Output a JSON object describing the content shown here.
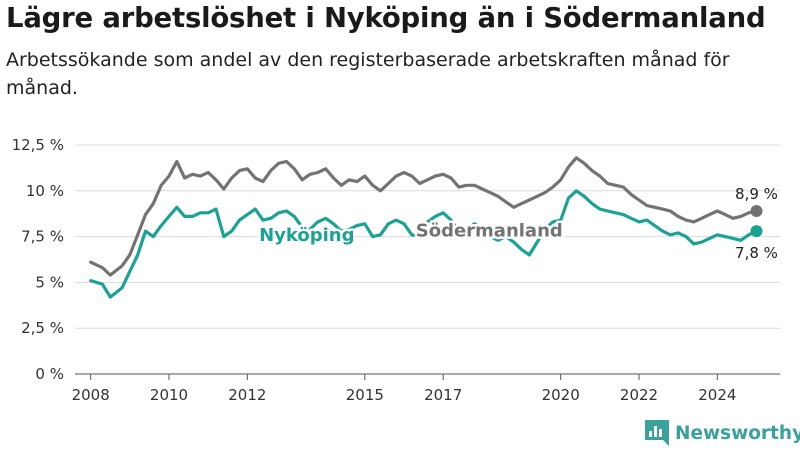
{
  "header": {
    "title": "Lägre arbetslöshet i Nyköping än i Södermanland",
    "subtitle": "Arbetssökande som andel av den registerbaserade arbetskraften månad för månad."
  },
  "brand": {
    "name": "Newsworthy",
    "color": "#3aa19b"
  },
  "chart_data": {
    "type": "line",
    "title": "Lägre arbetslöshet i Nyköping än i Södermanland",
    "subtitle": "Arbetssökande som andel av den registerbaserade arbetskraften månad för månad.",
    "xlabel": "",
    "ylabel": "",
    "ylim": [
      0,
      12.5
    ],
    "xlim": [
      2007.6,
      2025.6
    ],
    "grid": true,
    "y_ticks": [
      0,
      2.5,
      5,
      7.5,
      10,
      12.5
    ],
    "y_tick_labels": [
      "0 %",
      "2,5 %",
      "5 %",
      "7,5 %",
      "10 %",
      "12,5 %"
    ],
    "x_ticks": [
      2008,
      2010,
      2012,
      2015,
      2017,
      2020,
      2022,
      2024
    ],
    "x_tick_labels": [
      "2008",
      "2010",
      "2012",
      "2015",
      "2017",
      "2020",
      "2022",
      "2024"
    ],
    "series": [
      {
        "name": "Södermanland",
        "color": "#737373",
        "end_label": "8,9 %",
        "x": [
          2008.0,
          2008.3,
          2008.5,
          2008.8,
          2009.0,
          2009.2,
          2009.4,
          2009.6,
          2009.8,
          2010.0,
          2010.2,
          2010.4,
          2010.6,
          2010.8,
          2011.0,
          2011.2,
          2011.4,
          2011.6,
          2011.8,
          2012.0,
          2012.2,
          2012.4,
          2012.6,
          2012.8,
          2013.0,
          2013.2,
          2013.4,
          2013.6,
          2013.8,
          2014.0,
          2014.2,
          2014.4,
          2014.6,
          2014.8,
          2015.0,
          2015.2,
          2015.4,
          2015.6,
          2015.8,
          2016.0,
          2016.2,
          2016.4,
          2016.6,
          2016.8,
          2017.0,
          2017.2,
          2017.4,
          2017.6,
          2017.8,
          2018.0,
          2018.2,
          2018.4,
          2018.6,
          2018.8,
          2019.0,
          2019.2,
          2019.4,
          2019.6,
          2019.8,
          2020.0,
          2020.2,
          2020.4,
          2020.6,
          2020.8,
          2021.0,
          2021.2,
          2021.4,
          2021.6,
          2021.8,
          2022.0,
          2022.2,
          2022.4,
          2022.6,
          2022.8,
          2023.0,
          2023.2,
          2023.4,
          2023.6,
          2023.8,
          2024.0,
          2024.2,
          2024.4,
          2024.6,
          2024.8,
          2025.0
        ],
        "values": [
          6.1,
          5.8,
          5.4,
          5.9,
          6.5,
          7.6,
          8.7,
          9.3,
          10.3,
          10.8,
          11.6,
          10.7,
          10.9,
          10.8,
          11.0,
          10.6,
          10.1,
          10.7,
          11.1,
          11.2,
          10.7,
          10.5,
          11.1,
          11.5,
          11.6,
          11.2,
          10.6,
          10.9,
          11.0,
          11.2,
          10.7,
          10.3,
          10.6,
          10.5,
          10.8,
          10.3,
          10.0,
          10.4,
          10.8,
          11.0,
          10.8,
          10.4,
          10.6,
          10.8,
          10.9,
          10.7,
          10.2,
          10.3,
          10.3,
          10.1,
          9.9,
          9.7,
          9.4,
          9.1,
          9.3,
          9.5,
          9.7,
          9.9,
          10.2,
          10.6,
          11.3,
          11.8,
          11.5,
          11.1,
          10.8,
          10.4,
          10.3,
          10.2,
          9.8,
          9.5,
          9.2,
          9.1,
          9.0,
          8.9,
          8.6,
          8.4,
          8.3,
          8.5,
          8.7,
          8.9,
          8.7,
          8.5,
          8.6,
          8.8,
          8.9
        ]
      },
      {
        "name": "Nyköping",
        "color": "#1aa394",
        "end_label": "7,8 %",
        "x": [
          2008.0,
          2008.3,
          2008.5,
          2008.8,
          2009.0,
          2009.2,
          2009.4,
          2009.6,
          2009.8,
          2010.0,
          2010.2,
          2010.4,
          2010.6,
          2010.8,
          2011.0,
          2011.2,
          2011.4,
          2011.6,
          2011.8,
          2012.0,
          2012.2,
          2012.4,
          2012.6,
          2012.8,
          2013.0,
          2013.2,
          2013.4,
          2013.6,
          2013.8,
          2014.0,
          2014.2,
          2014.4,
          2014.6,
          2014.8,
          2015.0,
          2015.2,
          2015.4,
          2015.6,
          2015.8,
          2016.0,
          2016.2,
          2016.4,
          2016.6,
          2016.8,
          2017.0,
          2017.2,
          2017.4,
          2017.6,
          2017.8,
          2018.0,
          2018.2,
          2018.4,
          2018.6,
          2018.8,
          2019.0,
          2019.2,
          2019.4,
          2019.6,
          2019.8,
          2020.0,
          2020.2,
          2020.4,
          2020.6,
          2020.8,
          2021.0,
          2021.2,
          2021.4,
          2021.6,
          2021.8,
          2022.0,
          2022.2,
          2022.4,
          2022.6,
          2022.8,
          2023.0,
          2023.2,
          2023.4,
          2023.6,
          2023.8,
          2024.0,
          2024.2,
          2024.4,
          2024.6,
          2024.8,
          2025.0
        ],
        "values": [
          5.1,
          4.9,
          4.2,
          4.7,
          5.6,
          6.5,
          7.8,
          7.5,
          8.1,
          8.6,
          9.1,
          8.6,
          8.6,
          8.8,
          8.8,
          9.0,
          7.5,
          7.8,
          8.4,
          8.7,
          9.0,
          8.4,
          8.5,
          8.8,
          8.9,
          8.6,
          8.0,
          7.9,
          8.3,
          8.5,
          8.2,
          7.8,
          7.9,
          8.1,
          8.2,
          7.5,
          7.6,
          8.2,
          8.4,
          8.2,
          7.6,
          7.5,
          8.3,
          8.6,
          8.8,
          8.4,
          7.8,
          7.9,
          8.2,
          7.9,
          7.5,
          7.3,
          7.5,
          7.2,
          6.8,
          6.5,
          7.2,
          7.9,
          8.3,
          8.4,
          9.6,
          10.0,
          9.7,
          9.3,
          9.0,
          8.9,
          8.8,
          8.7,
          8.5,
          8.3,
          8.4,
          8.1,
          7.8,
          7.6,
          7.7,
          7.5,
          7.1,
          7.2,
          7.4,
          7.6,
          7.5,
          7.4,
          7.3,
          7.6,
          7.8
        ]
      }
    ]
  }
}
